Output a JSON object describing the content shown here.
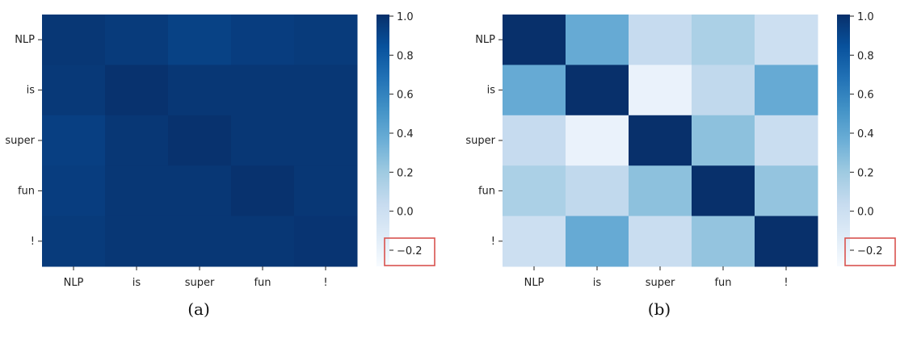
{
  "chart_data": [
    {
      "type": "heatmap",
      "caption": "(a)",
      "rows": [
        "NLP",
        "is",
        "super",
        "fun",
        "!"
      ],
      "columns": [
        "NLP",
        "is",
        "super",
        "fun",
        "!"
      ],
      "values": [
        [
          0.97,
          0.95,
          0.92,
          0.94,
          0.95
        ],
        [
          0.96,
          0.99,
          0.97,
          0.97,
          0.97
        ],
        [
          0.93,
          0.97,
          0.99,
          0.97,
          0.97
        ],
        [
          0.94,
          0.97,
          0.97,
          0.99,
          0.97
        ],
        [
          0.95,
          0.97,
          0.97,
          0.97,
          0.98
        ]
      ],
      "colorbar": {
        "range": [
          -0.2,
          1.0
        ],
        "ticks": [
          "1.0",
          "0.8",
          "0.6",
          "0.4",
          "0.2",
          "0.0",
          "−0.2"
        ],
        "highlighted_tick": "−0.2"
      },
      "colormap": "Blues"
    },
    {
      "type": "heatmap",
      "caption": "(b)",
      "rows": [
        "NLP",
        "is",
        "super",
        "fun",
        "!"
      ],
      "columns": [
        "NLP",
        "is",
        "super",
        "fun",
        "!"
      ],
      "values": [
        [
          1.0,
          0.42,
          0.1,
          0.2,
          0.06
        ],
        [
          0.42,
          1.0,
          -0.12,
          0.12,
          0.42
        ],
        [
          0.1,
          -0.12,
          1.0,
          0.3,
          0.08
        ],
        [
          0.2,
          0.12,
          0.3,
          1.0,
          0.28
        ],
        [
          0.06,
          0.42,
          0.08,
          0.28,
          1.0
        ]
      ],
      "colorbar": {
        "range": [
          -0.2,
          1.0
        ],
        "ticks": [
          "1.0",
          "0.8",
          "0.6",
          "0.4",
          "0.2",
          "0.0",
          "−0.2"
        ],
        "highlighted_tick": "−0.2"
      },
      "colormap": "Blues"
    }
  ],
  "colors": {
    "highlight_box": "#d9534f",
    "text": "#222222"
  }
}
